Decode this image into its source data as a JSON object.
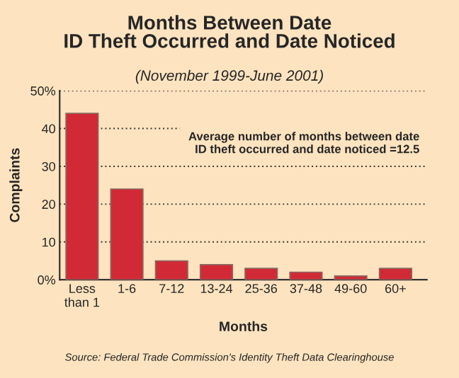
{
  "chart_data": {
    "type": "bar",
    "title": "Months Between Date\nID Theft Occurred and Date Noticed",
    "subtitle": "(November 1999-June 2001)",
    "xlabel": "Months",
    "ylabel": "Complaints",
    "categories": [
      "Less\nthan 1",
      "1-6",
      "7-12",
      "13-24",
      "25-36",
      "37-48",
      "49-60",
      "60+"
    ],
    "values": [
      44,
      24,
      5,
      4,
      3,
      2,
      1,
      3
    ],
    "color": "#d12a36",
    "ylim": [
      0,
      50
    ],
    "yticks": [
      {
        "value": 0,
        "label": "0%"
      },
      10,
      20,
      30,
      40,
      {
        "value": 50,
        "label": "50%"
      }
    ],
    "grid": "y",
    "annotations": [
      "Average number of months between date\nID theft occurred and date noticed =12.5",
      "Source: Federal Trade Commission's Identity Theft Data Clearinghouse"
    ]
  }
}
